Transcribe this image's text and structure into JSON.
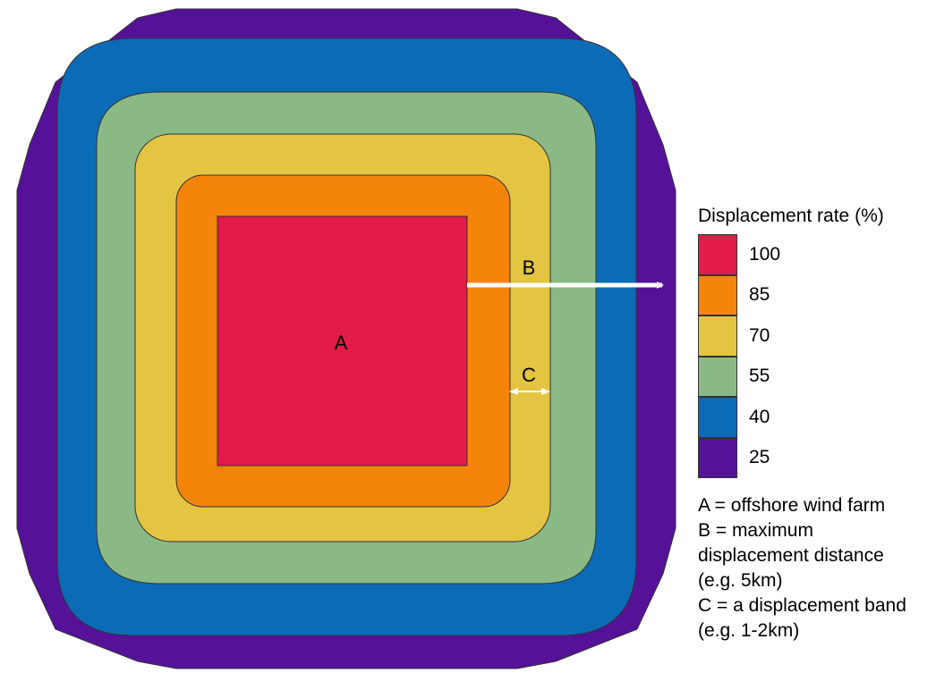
{
  "bands": [
    {
      "value": "25",
      "color": "#561199"
    },
    {
      "value": "40",
      "color": "#0c6bb6"
    },
    {
      "value": "55",
      "color": "#8bb985"
    },
    {
      "value": "70",
      "color": "#e3c443"
    },
    {
      "value": "85",
      "color": "#f4850a"
    },
    {
      "value": "100",
      "color": "#e21b48"
    }
  ],
  "labels": {
    "a": "A",
    "b": "B",
    "c": "C"
  },
  "legend": {
    "title": "Displacement rate (%)",
    "entries": [
      {
        "value": "100",
        "color": "#e21b48"
      },
      {
        "value": "85",
        "color": "#f4850a"
      },
      {
        "value": "70",
        "color": "#e3c443"
      },
      {
        "value": "55",
        "color": "#8bb985"
      },
      {
        "value": "40",
        "color": "#0c6bb6"
      },
      {
        "value": "25",
        "color": "#561199"
      }
    ]
  },
  "notes": [
    "A = offshore wind farm",
    "B = maximum",
    "displacement distance",
    "(e.g. 5km)",
    "C = a displacement band",
    "(e.g. 1-2km)"
  ]
}
